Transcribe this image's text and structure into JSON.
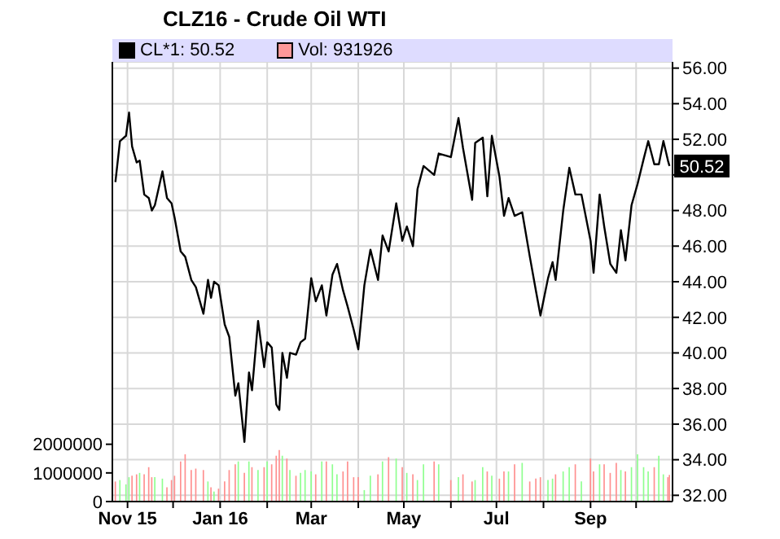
{
  "chart_data": {
    "type": "line",
    "title": "CLZ16 - Crude Oil WTI",
    "x": [
      "2015-10-24",
      "2015-10-27",
      "2015-10-31",
      "2015-11-02",
      "2015-11-04",
      "2015-11-07",
      "2015-11-09",
      "2015-11-12",
      "2015-11-15",
      "2015-11-17",
      "2015-11-19",
      "2015-11-24",
      "2015-11-27",
      "2015-11-30",
      "2015-12-02",
      "2015-12-06",
      "2015-12-09",
      "2015-12-13",
      "2015-12-16",
      "2015-12-21",
      "2015-12-24",
      "2015-12-26",
      "2015-12-28",
      "2015-12-31",
      "2016-01-04",
      "2016-01-07",
      "2016-01-11",
      "2016-01-13",
      "2016-01-17",
      "2016-01-20",
      "2016-01-22",
      "2016-01-26",
      "2016-01-30",
      "2016-02-01",
      "2016-02-04",
      "2016-02-07",
      "2016-02-09",
      "2016-02-11",
      "2016-02-14",
      "2016-02-16",
      "2016-02-20",
      "2016-02-23",
      "2016-02-26",
      "2016-03-01",
      "2016-03-04",
      "2016-03-08",
      "2016-03-11",
      "2016-03-15",
      "2016-03-18",
      "2016-03-22",
      "2016-03-25",
      "2016-03-29",
      "2016-04-01",
      "2016-04-05",
      "2016-04-09",
      "2016-04-14",
      "2016-04-17",
      "2016-04-21",
      "2016-04-26",
      "2016-04-30",
      "2016-05-03",
      "2016-05-07",
      "2016-05-10",
      "2016-05-14",
      "2016-05-21",
      "2016-05-24",
      "2016-06-01",
      "2016-06-06",
      "2016-06-09",
      "2016-06-15",
      "2016-06-17",
      "2016-06-22",
      "2016-06-25",
      "2016-06-28",
      "2016-07-03",
      "2016-07-06",
      "2016-07-09",
      "2016-07-13",
      "2016-07-18",
      "2016-07-23",
      "2016-07-27",
      "2016-07-30",
      "2016-08-04",
      "2016-08-07",
      "2016-08-09",
      "2016-08-14",
      "2016-08-18",
      "2016-08-22",
      "2016-08-26",
      "2016-09-01",
      "2016-09-03",
      "2016-09-07",
      "2016-09-10",
      "2016-09-14",
      "2016-09-18",
      "2016-09-21",
      "2016-09-24",
      "2016-09-28",
      "2016-10-02",
      "2016-10-06",
      "2016-10-09",
      "2016-10-13",
      "2016-10-16",
      "2016-10-19",
      "2016-10-22",
      "2016-10-23"
    ],
    "series": [
      {
        "name": "CL*1: 50.52",
        "axis": "y2",
        "color": "#000000",
        "values": [
          49.6,
          51.9,
          52.2,
          53.5,
          51.6,
          50.7,
          50.8,
          48.9,
          48.7,
          48.0,
          48.3,
          50.2,
          48.7,
          48.4,
          47.6,
          45.7,
          45.4,
          44.1,
          43.7,
          42.2,
          44.1,
          43.1,
          44.0,
          43.8,
          41.6,
          40.9,
          37.6,
          38.3,
          35.0,
          38.9,
          37.9,
          41.8,
          39.2,
          40.6,
          40.3,
          37.1,
          36.8,
          40.0,
          38.6,
          40.0,
          39.9,
          40.6,
          40.8,
          44.2,
          42.9,
          43.8,
          42.1,
          44.4,
          45.0,
          43.5,
          42.6,
          41.3,
          40.2,
          43.8,
          45.8,
          44.1,
          46.6,
          45.7,
          48.4,
          46.3,
          47.1,
          46.0,
          49.2,
          50.5,
          50.0,
          51.2,
          51.0,
          53.2,
          51.5,
          48.6,
          51.8,
          52.1,
          48.8,
          52.2,
          49.9,
          47.7,
          48.7,
          47.7,
          47.9,
          45.4,
          43.5,
          42.1,
          44.2,
          45.1,
          44.1,
          48.0,
          50.4,
          48.9,
          48.9,
          46.3,
          44.5,
          48.9,
          47.1,
          45.0,
          44.5,
          46.9,
          45.2,
          48.3,
          49.5,
          50.9,
          51.9,
          50.6,
          50.6,
          51.9,
          50.8,
          50.5
        ]
      },
      {
        "name": "Vol: 931926",
        "type": "bar",
        "axis": "y",
        "color": "#ff9999",
        "values": [
          700000,
          750000,
          600000,
          850000,
          900000,
          950000,
          1000000,
          950000,
          1200000,
          850000,
          850000,
          800000,
          500000,
          750000,
          900000,
          1400000,
          1650000,
          1100000,
          1150000,
          1100000,
          700000,
          500000,
          350000,
          450000,
          700000,
          1100000,
          1300000,
          1400000,
          1000000,
          1400000,
          1200000,
          1100000,
          1200000,
          1400000,
          1300000,
          1600000,
          1800000,
          1600000,
          1500000,
          1100000,
          900000,
          1000000,
          1100000,
          1050000,
          950000,
          1400000,
          1400000,
          1300000,
          950000,
          1050000,
          1400000,
          850000,
          850000,
          400000,
          900000,
          950000,
          1400000,
          1550000,
          1500000,
          1200000,
          1000000,
          950000,
          750000,
          1300000,
          1400000,
          1300000,
          750000,
          850000,
          950000,
          700000,
          750000,
          1200000,
          1050000,
          900000,
          800000,
          1050000,
          1050000,
          1300000,
          1350000,
          700000,
          800000,
          850000,
          750000,
          800000,
          950000,
          1050000,
          1200000,
          1300000,
          700000,
          1500000,
          1050000,
          1300000,
          1300000,
          1000000,
          1350000,
          1100000,
          1050000,
          1200000,
          1650000,
          1200000,
          1050000,
          1200000,
          1600000,
          950000,
          850000,
          930000
        ],
        "colors": [
          "#ff8f8f",
          "#8fff8f",
          "#8fff8f",
          "#8fff8f",
          "#ff8f8f",
          "#ff8f8f",
          "#8fff8f",
          "#ff8f8f",
          "#ff8f8f",
          "#ff8f8f",
          "#8fff8f",
          "#8fff8f",
          "#ff8f8f",
          "#ff8f8f",
          "#ff8f8f",
          "#ff8f8f",
          "#ff8f8f",
          "#ff8f8f",
          "#ff8f8f",
          "#ff8f8f",
          "#8fff8f",
          "#ff8f8f",
          "#8fff8f",
          "#ff8f8f",
          "#ff8f8f",
          "#ff8f8f",
          "#ff8f8f",
          "#8fff8f",
          "#ff8f8f",
          "#8fff8f",
          "#ff8f8f",
          "#8fff8f",
          "#ff8f8f",
          "#8fff8f",
          "#ff8f8f",
          "#ff8f8f",
          "#ff8f8f",
          "#8fff8f",
          "#ff8f8f",
          "#8fff8f",
          "#ff8f8f",
          "#8fff8f",
          "#8fff8f",
          "#8fff8f",
          "#ff8f8f",
          "#8fff8f",
          "#ff8f8f",
          "#8fff8f",
          "#8fff8f",
          "#ff8f8f",
          "#ff8f8f",
          "#ff8f8f",
          "#ff8f8f",
          "#8fff8f",
          "#8fff8f",
          "#ff8f8f",
          "#8fff8f",
          "#ff8f8f",
          "#8fff8f",
          "#ff8f8f",
          "#8fff8f",
          "#ff8f8f",
          "#8fff8f",
          "#8fff8f",
          "#ff8f8f",
          "#8fff8f",
          "#ff8f8f",
          "#8fff8f",
          "#ff8f8f",
          "#ff8f8f",
          "#8fff8f",
          "#8fff8f",
          "#ff8f8f",
          "#8fff8f",
          "#ff8f8f",
          "#ff8f8f",
          "#8fff8f",
          "#ff8f8f",
          "#8fff8f",
          "#ff8f8f",
          "#ff8f8f",
          "#ff8f8f",
          "#8fff8f",
          "#8fff8f",
          "#ff8f8f",
          "#8fff8f",
          "#8fff8f",
          "#ff8f8f",
          "#8fff8f",
          "#ff8f8f",
          "#ff8f8f",
          "#8fff8f",
          "#ff8f8f",
          "#ff8f8f",
          "#ff8f8f",
          "#8fff8f",
          "#ff8f8f",
          "#8fff8f",
          "#8fff8f",
          "#8fff8f",
          "#8fff8f",
          "#ff8f8f",
          "#8fff8f",
          "#8fff8f",
          "#ff8f8f",
          "#ff8f8f"
        ]
      }
    ],
    "xlim": [
      "2015-10-22",
      "2016-10-25"
    ],
    "xticks": [
      {
        "value": "2015-11-01",
        "label": "Nov 15"
      },
      {
        "value": "2015-12-01",
        "label": null
      },
      {
        "value": "2016-01-01",
        "label": "Jan 16"
      },
      {
        "value": "2016-02-01",
        "label": null
      },
      {
        "value": "2016-03-01",
        "label": "Mar"
      },
      {
        "value": "2016-04-01",
        "label": null
      },
      {
        "value": "2016-05-01",
        "label": "May"
      },
      {
        "value": "2016-06-01",
        "label": null
      },
      {
        "value": "2016-07-01",
        "label": "Jul"
      },
      {
        "value": "2016-08-01",
        "label": null
      },
      {
        "value": "2016-09-01",
        "label": "Sep"
      },
      {
        "value": "2016-10-01",
        "label": null
      }
    ],
    "ylim": [
      0,
      15350000
    ],
    "yticks": [
      0,
      1000000,
      2000000
    ],
    "y2lim": [
      31.65,
      56.35
    ],
    "y2ticks": [
      {
        "value": 32,
        "label": "32.00"
      },
      {
        "value": 34,
        "label": "34.00"
      },
      {
        "value": 36,
        "label": "36.00"
      },
      {
        "value": 38,
        "label": "38.00"
      },
      {
        "value": 40,
        "label": "40.00"
      },
      {
        "value": 42,
        "label": "42.00"
      },
      {
        "value": 44,
        "label": "44.00"
      },
      {
        "value": 46,
        "label": "46.00"
      },
      {
        "value": 48,
        "label": "48.00"
      },
      {
        "value": 50,
        "label": null
      },
      {
        "value": 52,
        "label": "52.00"
      },
      {
        "value": 54,
        "label": "54.00"
      },
      {
        "value": 56,
        "label": "56.00"
      }
    ],
    "annotations": [
      "50.52"
    ],
    "grid": true,
    "legend": "top",
    "marker": "none"
  }
}
